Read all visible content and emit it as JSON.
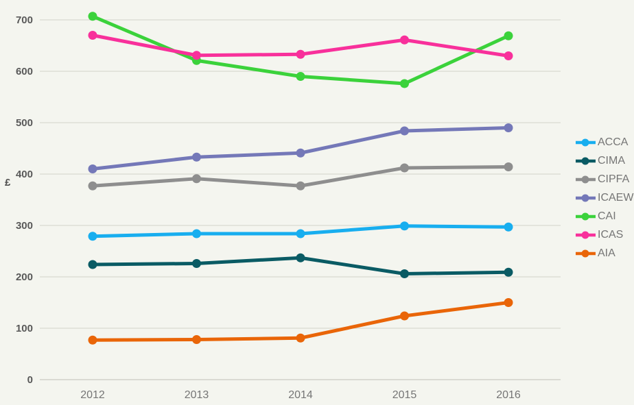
{
  "axes": {
    "y_axis_title": "£"
  },
  "chart_data": {
    "type": "line",
    "ylabel": "£",
    "xlabel": "",
    "categories": [
      "2012",
      "2013",
      "2014",
      "2015",
      "2016"
    ],
    "y_ticks": [
      0,
      100,
      200,
      300,
      400,
      500,
      600,
      700
    ],
    "ylim": [
      0,
      720
    ],
    "grid": true,
    "legend_position": "right",
    "series": [
      {
        "name": "ACCA",
        "color": "#18aeef",
        "values": [
          279,
          284,
          284,
          299,
          297
        ]
      },
      {
        "name": "CIMA",
        "color": "#0a5b64",
        "values": [
          224,
          226,
          237,
          206,
          209
        ]
      },
      {
        "name": "CIPFA",
        "color": "#8e8e8e",
        "values": [
          377,
          391,
          377,
          412,
          414
        ]
      },
      {
        "name": "ICAEW",
        "color": "#7478b8",
        "values": [
          410,
          433,
          441,
          484,
          490
        ]
      },
      {
        "name": "CAI",
        "color": "#3bd23b",
        "values": [
          707,
          621,
          590,
          576,
          669
        ]
      },
      {
        "name": "ICAS",
        "color": "#f8309b",
        "values": [
          670,
          631,
          633,
          661,
          630
        ]
      },
      {
        "name": "AIA",
        "color": "#e96508",
        "values": [
          77,
          78,
          81,
          124,
          150
        ]
      }
    ],
    "colors": {
      "background": "#f4f5ef",
      "gridline": "#d2d2ca",
      "axis_line": "#bfbfb7",
      "y_tick_text": "#595959",
      "x_tick_text": "#757575",
      "legend_text": "#757575"
    }
  }
}
